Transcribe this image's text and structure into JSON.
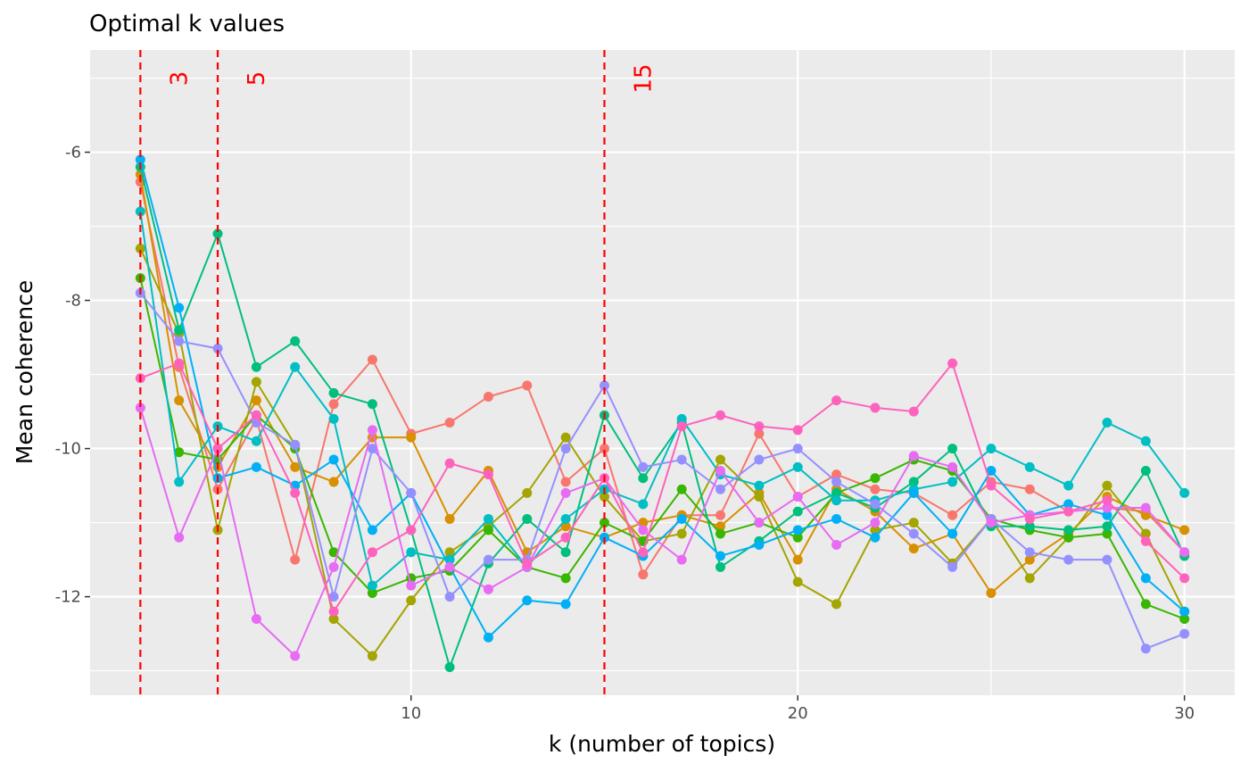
{
  "chart_data": {
    "type": "line",
    "title": "Optimal k values",
    "xlabel": "k (number of topics)",
    "ylabel": "Mean coherence",
    "xlim": [
      1.7,
      31.3
    ],
    "ylim": [
      -13.33,
      -4.62
    ],
    "x_ticks": [
      10,
      20,
      30
    ],
    "y_ticks": [
      -6,
      -8,
      -10,
      -12
    ],
    "grid": true,
    "legend": "none",
    "reference_lines": [
      {
        "x": 3,
        "label": "3",
        "color": "#ff0000"
      },
      {
        "x": 5,
        "label": "5",
        "color": "#ff0000"
      },
      {
        "x": 15,
        "label": "15",
        "color": "#ff0000"
      }
    ],
    "x": [
      3,
      4,
      5,
      6,
      7,
      8,
      9,
      10,
      11,
      12,
      13,
      14,
      15,
      16,
      17,
      18,
      19,
      20,
      21,
      22,
      23,
      24,
      25,
      26,
      27,
      28,
      29,
      30
    ],
    "series": [
      {
        "color": "#F8766D",
        "values": [
          -6.4,
          -8.9,
          -10.55,
          -9.6,
          -11.5,
          -9.4,
          -8.8,
          -9.8,
          -9.65,
          -9.3,
          -9.15,
          -10.45,
          -10.0,
          -11.7,
          -10.9,
          -10.9,
          -9.8,
          -10.65,
          -10.35,
          -10.55,
          -10.6,
          -10.9,
          -10.45,
          -10.55,
          -10.85,
          -10.8,
          -10.85,
          -11.4
        ]
      },
      {
        "color": "#D89000",
        "values": [
          -6.3,
          -9.35,
          -10.25,
          -9.35,
          -10.25,
          -10.45,
          -9.85,
          -9.85,
          -10.95,
          -10.3,
          -11.4,
          -11.05,
          -11.2,
          -11.0,
          -10.9,
          -11.05,
          -10.6,
          -11.5,
          -10.55,
          -10.85,
          -11.35,
          -11.15,
          -11.95,
          -11.5,
          -11.15,
          -10.65,
          -10.9,
          -11.1
        ]
      },
      {
        "color": "#A3A500",
        "values": [
          -7.3,
          -8.45,
          -11.1,
          -9.1,
          -9.95,
          -12.3,
          -12.8,
          -12.05,
          -11.4,
          -11.05,
          -10.6,
          -9.85,
          -10.65,
          -11.25,
          -11.15,
          -10.15,
          -10.65,
          -11.8,
          -12.1,
          -11.1,
          -11.0,
          -11.55,
          -10.95,
          -11.75,
          -11.2,
          -10.5,
          -11.15,
          -12.2
        ]
      },
      {
        "color": "#39B600",
        "values": [
          -7.7,
          -10.05,
          -10.15,
          -9.55,
          -10.0,
          -11.4,
          -11.95,
          -11.75,
          -11.65,
          -11.1,
          -11.6,
          -11.75,
          -11.0,
          -11.25,
          -10.55,
          -11.15,
          -11.0,
          -11.2,
          -10.6,
          -10.4,
          -10.15,
          -10.3,
          -10.95,
          -11.1,
          -11.2,
          -11.15,
          -12.1,
          -12.3
        ]
      },
      {
        "color": "#00BF7D",
        "values": [
          -6.2,
          -8.4,
          -7.1,
          -8.9,
          -8.55,
          -9.25,
          -9.4,
          -11.1,
          -12.95,
          -11.55,
          -10.95,
          -11.4,
          -9.55,
          -10.4,
          -9.65,
          -11.6,
          -11.25,
          -10.85,
          -10.6,
          -10.8,
          -10.45,
          -10.0,
          -11.05,
          -11.05,
          -11.1,
          -11.05,
          -10.3,
          -11.45
        ]
      },
      {
        "color": "#00BFC4",
        "values": [
          -6.8,
          -10.45,
          -9.7,
          -9.9,
          -8.9,
          -9.6,
          -11.85,
          -11.4,
          -11.5,
          -10.95,
          -11.6,
          -10.95,
          -10.55,
          -10.75,
          -9.6,
          -10.35,
          -10.5,
          -10.25,
          -10.7,
          -10.7,
          -10.55,
          -10.45,
          -10.0,
          -10.25,
          -10.5,
          -9.65,
          -9.9,
          -10.6
        ]
      },
      {
        "color": "#00B0F6",
        "values": [
          -6.1,
          -8.1,
          -10.4,
          -10.25,
          -10.5,
          -10.15,
          -11.1,
          -10.6,
          -11.6,
          -12.55,
          -12.05,
          -12.1,
          -11.2,
          -11.45,
          -10.95,
          -11.45,
          -11.3,
          -11.1,
          -10.95,
          -11.2,
          -10.6,
          -11.15,
          -10.3,
          -10.9,
          -10.75,
          -10.9,
          -11.75,
          -12.2
        ]
      },
      {
        "color": "#9590FF",
        "values": [
          -7.9,
          -8.55,
          -8.65,
          -9.65,
          -9.95,
          -12.0,
          -10.0,
          -10.6,
          -12.0,
          -11.5,
          -11.5,
          -10.0,
          -9.15,
          -10.25,
          -10.15,
          -10.55,
          -10.15,
          -10.0,
          -10.45,
          -10.75,
          -11.15,
          -11.6,
          -10.95,
          -11.4,
          -11.5,
          -11.5,
          -12.7,
          -12.5
        ]
      },
      {
        "color": "#E76BF3",
        "values": [
          -9.45,
          -11.2,
          -10.0,
          -12.3,
          -12.8,
          -11.6,
          -9.75,
          -11.85,
          -11.6,
          -11.9,
          -11.6,
          -10.6,
          -10.4,
          -11.1,
          -11.5,
          -10.3,
          -11.0,
          -10.65,
          -11.3,
          -11.0,
          -10.1,
          -10.25,
          -11.0,
          -10.9,
          -10.85,
          -10.8,
          -10.8,
          -11.4
        ]
      },
      {
        "color": "#FF62BC",
        "values": [
          -9.05,
          -8.85,
          -10.0,
          -9.55,
          -10.6,
          -12.2,
          -11.4,
          -11.1,
          -10.2,
          -10.35,
          -11.55,
          -11.2,
          -10.4,
          -11.4,
          -9.7,
          -9.55,
          -9.7,
          -9.75,
          -9.35,
          -9.45,
          -9.5,
          -8.85,
          -10.5,
          -10.95,
          -10.85,
          -10.7,
          -11.25,
          -11.75
        ]
      }
    ]
  }
}
